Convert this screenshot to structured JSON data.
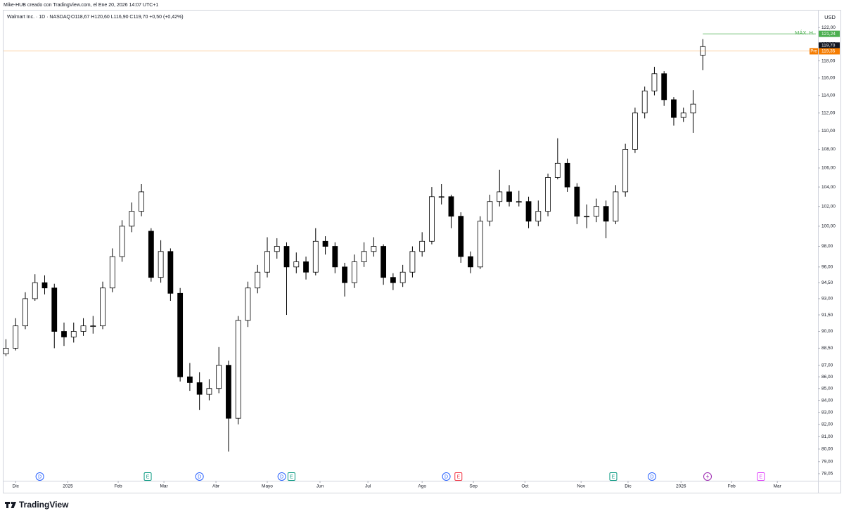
{
  "chart_data": {
    "type": "candlestick",
    "title": "Mike-HUB creado con TradingView.com, el Ene 20, 2026 14:07 UTC+1",
    "legend": {
      "symbol": "Walmart Inc. · 1D · NASDAQ",
      "ohlc": "O118,67 H120,60 L116,90 C119,70 +0,50 (+0,42%)"
    },
    "currency": "USD",
    "brand": "TradingView",
    "log_scale": true,
    "grid": false,
    "up_color": "#ffffff",
    "down_color": "#000000",
    "outline_color": "#000000",
    "xlim": [
      0,
      336.6
    ],
    "ylim": [
      77.5,
      124.1
    ],
    "xticks": [
      {
        "value": 5,
        "label": "Dic"
      },
      {
        "value": 26.6,
        "label": "2025"
      },
      {
        "value": 47.4,
        "label": "Feb"
      },
      {
        "value": 66.3,
        "label": "Mar"
      },
      {
        "value": 87.8,
        "label": "Abr"
      },
      {
        "value": 109,
        "label": "Mayo"
      },
      {
        "value": 130.8,
        "label": "Jun"
      },
      {
        "value": 150.6,
        "label": "Jul"
      },
      {
        "value": 173,
        "label": "Ago"
      },
      {
        "value": 194.2,
        "label": "Sep"
      },
      {
        "value": 215.5,
        "label": "Oct"
      },
      {
        "value": 238.7,
        "label": "Nov"
      },
      {
        "value": 258.1,
        "label": "Dic"
      },
      {
        "value": 280,
        "label": "2026"
      },
      {
        "value": 300.9,
        "label": "Feb"
      },
      {
        "value": 319.8,
        "label": "Mar"
      }
    ],
    "yticks": [
      {
        "value": 122,
        "label": "122,00"
      },
      {
        "value": 120,
        "label": "120,00"
      },
      {
        "value": 118,
        "label": "118,00"
      },
      {
        "value": 116,
        "label": "116,00"
      },
      {
        "value": 114,
        "label": "114,00"
      },
      {
        "value": 112,
        "label": "112,00"
      },
      {
        "value": 110,
        "label": "110,00"
      },
      {
        "value": 108,
        "label": "108,00"
      },
      {
        "value": 106,
        "label": "106,00"
      },
      {
        "value": 104,
        "label": "104,00"
      },
      {
        "value": 102,
        "label": "102,00"
      },
      {
        "value": 100,
        "label": "100,00"
      },
      {
        "value": 98,
        "label": "98,00"
      },
      {
        "value": 96,
        "label": "96,00"
      },
      {
        "value": 94.5,
        "label": "94,50"
      },
      {
        "value": 93,
        "label": "93,00"
      },
      {
        "value": 91.5,
        "label": "91,50"
      },
      {
        "value": 90,
        "label": "90,00"
      },
      {
        "value": 88.5,
        "label": "88,50"
      },
      {
        "value": 87,
        "label": "87,00"
      },
      {
        "value": 86,
        "label": "86,00"
      },
      {
        "value": 85,
        "label": "85,00"
      },
      {
        "value": 84,
        "label": "84,00"
      },
      {
        "value": 83,
        "label": "83,00"
      },
      {
        "value": 82,
        "label": "82,00"
      },
      {
        "value": 81,
        "label": "81,00"
      },
      {
        "value": 80,
        "label": "80,00"
      },
      {
        "value": 79,
        "label": "79,00"
      },
      {
        "value": 78.05,
        "label": "78,05"
      }
    ],
    "price_lines": [
      {
        "name": "MÁX. H.",
        "value": 121.24,
        "label": "121,24",
        "color": "#4caf50"
      },
      {
        "value": 119.7,
        "label": "119,70",
        "color": "#131722"
      },
      {
        "name": "Pre",
        "value": 119.35,
        "label": "119,35",
        "color": "#f57c00"
      }
    ],
    "events": [
      {
        "x": 15,
        "label": "D",
        "color": "#2962ff"
      },
      {
        "x": 59.6,
        "label": "E",
        "color": "#089981"
      },
      {
        "x": 81,
        "label": "D",
        "color": "#2962ff"
      },
      {
        "x": 115,
        "label": "D",
        "color": "#2962ff"
      },
      {
        "x": 119,
        "label": "E",
        "color": "#089981"
      },
      {
        "x": 183,
        "label": "D",
        "color": "#2962ff"
      },
      {
        "x": 188,
        "label": "E",
        "color": "#f23645"
      },
      {
        "x": 252,
        "label": "E",
        "color": "#089981"
      },
      {
        "x": 268,
        "label": "D",
        "color": "#2962ff"
      },
      {
        "x": 313,
        "label": "E",
        "color": "#e040fb"
      }
    ],
    "candles": [
      {
        "x": 1,
        "open": 88.0,
        "high": 89.3,
        "low": 87.8,
        "close": 88.5
      },
      {
        "x": 5,
        "open": 88.5,
        "high": 91.2,
        "low": 88.3,
        "close": 90.5
      },
      {
        "x": 9,
        "open": 90.5,
        "high": 93.6,
        "low": 90.2,
        "close": 93
      },
      {
        "x": 13,
        "open": 93,
        "high": 95.3,
        "low": 92.8,
        "close": 94.5
      },
      {
        "x": 17,
        "open": 94.5,
        "high": 95.2,
        "low": 93.4,
        "close": 94
      },
      {
        "x": 21,
        "open": 94,
        "high": 94.4,
        "low": 88.5,
        "close": 90
      },
      {
        "x": 25,
        "open": 90,
        "high": 90.8,
        "low": 88.7,
        "close": 89.5
      },
      {
        "x": 29,
        "open": 89.5,
        "high": 90.8,
        "low": 89.0,
        "close": 90
      },
      {
        "x": 33,
        "open": 90,
        "high": 91.2,
        "low": 89.6,
        "close": 90.5
      },
      {
        "x": 37,
        "open": 90.5,
        "high": 91.4,
        "low": 89.8,
        "close": 90.5
      },
      {
        "x": 41,
        "open": 90.5,
        "high": 94.6,
        "low": 90.2,
        "close": 94
      },
      {
        "x": 45,
        "open": 94,
        "high": 97.8,
        "low": 93.6,
        "close": 97
      },
      {
        "x": 49,
        "open": 97,
        "high": 100.6,
        "low": 96.5,
        "close": 100
      },
      {
        "x": 53,
        "open": 100,
        "high": 102.4,
        "low": 99.4,
        "close": 101.5
      },
      {
        "x": 57,
        "open": 101.5,
        "high": 104.3,
        "low": 101.0,
        "close": 103.5
      },
      {
        "x": 61,
        "open": 99.5,
        "high": 99.8,
        "low": 94.6,
        "close": 95
      },
      {
        "x": 65,
        "open": 95,
        "high": 98.6,
        "low": 94.5,
        "close": 97.5
      },
      {
        "x": 69,
        "open": 97.5,
        "high": 97.8,
        "low": 92.8,
        "close": 93.5
      },
      {
        "x": 73,
        "open": 93.5,
        "high": 94.0,
        "low": 85.6,
        "close": 86
      },
      {
        "x": 77,
        "open": 86,
        "high": 87.2,
        "low": 84.8,
        "close": 85.5
      },
      {
        "x": 81,
        "open": 85.5,
        "high": 86.4,
        "low": 83.2,
        "close": 84.5
      },
      {
        "x": 85,
        "open": 84.5,
        "high": 85.8,
        "low": 84.0,
        "close": 85
      },
      {
        "x": 89,
        "open": 85,
        "high": 88.6,
        "low": 84.6,
        "close": 87
      },
      {
        "x": 93,
        "open": 87,
        "high": 87.4,
        "low": 79.8,
        "close": 82.5
      },
      {
        "x": 97,
        "open": 82.5,
        "high": 91.4,
        "low": 82.0,
        "close": 91
      },
      {
        "x": 101,
        "open": 91,
        "high": 94.6,
        "low": 90.4,
        "close": 94
      },
      {
        "x": 105,
        "open": 94,
        "high": 96.2,
        "low": 93.5,
        "close": 95.5
      },
      {
        "x": 109,
        "open": 95.5,
        "high": 98.9,
        "low": 95.0,
        "close": 97.5
      },
      {
        "x": 113,
        "open": 97.5,
        "high": 98.8,
        "low": 96.8,
        "close": 98
      },
      {
        "x": 117,
        "open": 98,
        "high": 98.4,
        "low": 91.5,
        "close": 96
      },
      {
        "x": 121,
        "open": 96,
        "high": 97.4,
        "low": 95.4,
        "close": 96.5
      },
      {
        "x": 125,
        "open": 96.5,
        "high": 97.0,
        "low": 94.8,
        "close": 95.5
      },
      {
        "x": 129,
        "open": 95.5,
        "high": 99.8,
        "low": 95.2,
        "close": 98.5
      },
      {
        "x": 133,
        "open": 98.5,
        "high": 99.0,
        "low": 97.2,
        "close": 98
      },
      {
        "x": 137,
        "open": 98,
        "high": 98.4,
        "low": 95.4,
        "close": 96
      },
      {
        "x": 141,
        "open": 96,
        "high": 96.4,
        "low": 93.2,
        "close": 94.5
      },
      {
        "x": 145,
        "open": 94.5,
        "high": 97.2,
        "low": 94.0,
        "close": 96.5
      },
      {
        "x": 149,
        "open": 96.5,
        "high": 98.4,
        "low": 96.0,
        "close": 97.5
      },
      {
        "x": 153,
        "open": 97.5,
        "high": 98.9,
        "low": 97.0,
        "close": 98
      },
      {
        "x": 157,
        "open": 98,
        "high": 98.2,
        "low": 94.3,
        "close": 95
      },
      {
        "x": 161,
        "open": 95,
        "high": 95.4,
        "low": 93.8,
        "close": 94.5
      },
      {
        "x": 165,
        "open": 94.5,
        "high": 96.2,
        "low": 94.1,
        "close": 95.5
      },
      {
        "x": 169,
        "open": 95.5,
        "high": 98.0,
        "low": 95.0,
        "close": 97.5
      },
      {
        "x": 173,
        "open": 97.5,
        "high": 99.4,
        "low": 97.0,
        "close": 98.5
      },
      {
        "x": 177,
        "open": 98.5,
        "high": 104.0,
        "low": 98.2,
        "close": 103
      },
      {
        "x": 181,
        "open": 103,
        "high": 104.3,
        "low": 102.2,
        "close": 103
      },
      {
        "x": 185,
        "open": 103,
        "high": 103.2,
        "low": 99.8,
        "close": 101
      },
      {
        "x": 189,
        "open": 101,
        "high": 101.4,
        "low": 96.4,
        "close": 97
      },
      {
        "x": 193,
        "open": 97,
        "high": 97.5,
        "low": 95.4,
        "close": 96
      },
      {
        "x": 197,
        "open": 96,
        "high": 101.0,
        "low": 95.8,
        "close": 100.5
      },
      {
        "x": 201,
        "open": 100.5,
        "high": 103.2,
        "low": 100.0,
        "close": 102.5
      },
      {
        "x": 205,
        "open": 102.5,
        "high": 105.8,
        "low": 102.0,
        "close": 103.5
      },
      {
        "x": 209,
        "open": 103.5,
        "high": 104.2,
        "low": 102.0,
        "close": 102.5
      },
      {
        "x": 213,
        "open": 102.5,
        "high": 103.6,
        "low": 102.0,
        "close": 102.5
      },
      {
        "x": 217,
        "open": 102.5,
        "high": 103.0,
        "low": 99.8,
        "close": 100.5
      },
      {
        "x": 221,
        "open": 100.5,
        "high": 102.6,
        "low": 100.0,
        "close": 101.5
      },
      {
        "x": 225,
        "open": 101.5,
        "high": 105.4,
        "low": 101.0,
        "close": 105
      },
      {
        "x": 229,
        "open": 105,
        "high": 109.2,
        "low": 104.8,
        "close": 106.5
      },
      {
        "x": 233,
        "open": 106.5,
        "high": 107.0,
        "low": 103.5,
        "close": 104
      },
      {
        "x": 237,
        "open": 104,
        "high": 104.4,
        "low": 100.2,
        "close": 101
      },
      {
        "x": 241,
        "open": 101,
        "high": 102.2,
        "low": 99.8,
        "close": 101
      },
      {
        "x": 245,
        "open": 101,
        "high": 102.8,
        "low": 100.4,
        "close": 102
      },
      {
        "x": 249,
        "open": 102,
        "high": 102.6,
        "low": 98.8,
        "close": 100.5
      },
      {
        "x": 253,
        "open": 100.5,
        "high": 104.2,
        "low": 100.2,
        "close": 103.5
      },
      {
        "x": 257,
        "open": 103.5,
        "high": 108.6,
        "low": 103.0,
        "close": 108
      },
      {
        "x": 261,
        "open": 108,
        "high": 112.6,
        "low": 107.6,
        "close": 112
      },
      {
        "x": 265,
        "open": 112,
        "high": 115.0,
        "low": 111.4,
        "close": 114.5
      },
      {
        "x": 269,
        "open": 114.5,
        "high": 117.3,
        "low": 114.0,
        "close": 116.5
      },
      {
        "x": 273,
        "open": 116.5,
        "high": 116.8,
        "low": 112.8,
        "close": 113.5
      },
      {
        "x": 277,
        "open": 113.5,
        "high": 113.8,
        "low": 110.6,
        "close": 111.5
      },
      {
        "x": 281,
        "open": 111.5,
        "high": 112.6,
        "low": 111.0,
        "close": 112
      },
      {
        "x": 285,
        "open": 112,
        "high": 114.6,
        "low": 109.8,
        "close": 113
      },
      {
        "x": 289,
        "open": 118.67,
        "high": 120.6,
        "low": 116.9,
        "close": 119.7
      }
    ]
  }
}
